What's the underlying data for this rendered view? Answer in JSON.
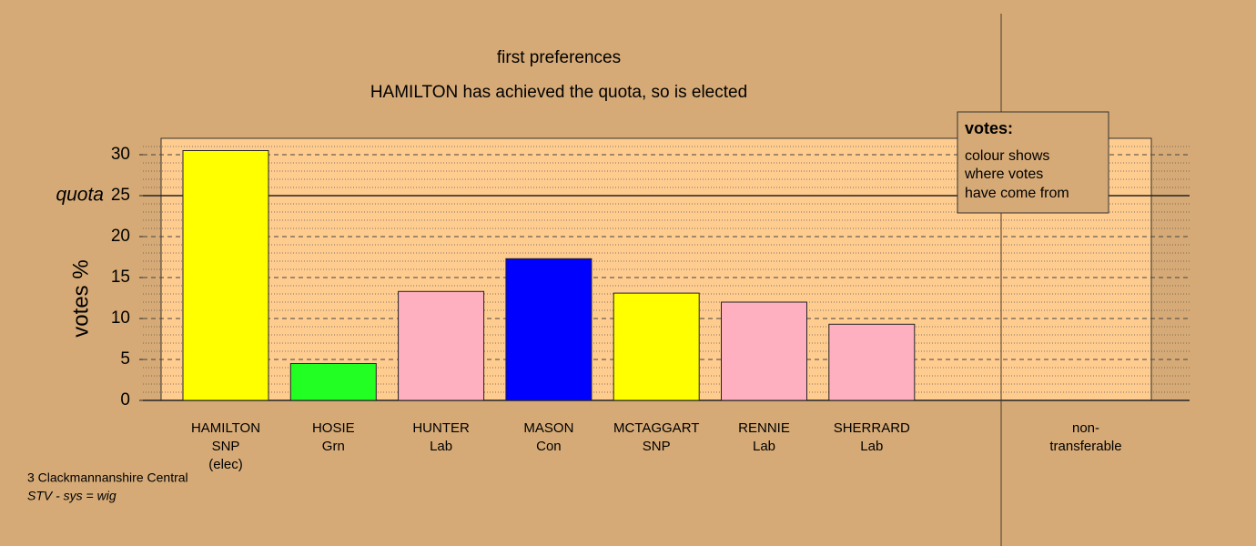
{
  "chart_data": {
    "type": "bar",
    "title": "first preferences",
    "subtitle": "HAMILTON has achieved the quota, so is elected",
    "y_label": "votes %",
    "categories": [
      [
        "HAMILTON",
        "SNP",
        "(elec)"
      ],
      [
        "HOSIE",
        "Grn"
      ],
      [
        "HUNTER",
        "Lab"
      ],
      [
        "MASON",
        "Con"
      ],
      [
        "MCTAGGART",
        "SNP"
      ],
      [
        "RENNIE",
        "Lab"
      ],
      [
        "SHERRARD",
        "Lab"
      ],
      [
        "non-",
        "transferable"
      ]
    ],
    "values": [
      30.5,
      4.5,
      13.3,
      17.3,
      13.1,
      12.0,
      9.3,
      0
    ],
    "colors": [
      "#ffff00",
      "#22ff22",
      "#ffb0c0",
      "#0000ff",
      "#ffff00",
      "#ffb0c0",
      "#ffb0c0",
      "#ffb0c0"
    ],
    "ylim": [
      0,
      32
    ],
    "yticks": [
      0,
      5,
      10,
      15,
      20,
      25,
      30
    ],
    "minor_yticks": [
      1,
      2,
      3,
      4,
      6,
      7,
      8,
      9,
      11,
      12,
      13,
      14,
      16,
      17,
      18,
      19,
      21,
      22,
      23,
      24,
      26,
      27,
      28,
      29,
      31
    ],
    "quota": {
      "label": "quota",
      "value": 25
    },
    "legend": {
      "title": "votes:",
      "lines": [
        "colour shows",
        "where votes",
        "have come from"
      ]
    },
    "footer": [
      "3 Clackmannanshire Central",
      "STV - sys = wig"
    ],
    "grid": true
  }
}
